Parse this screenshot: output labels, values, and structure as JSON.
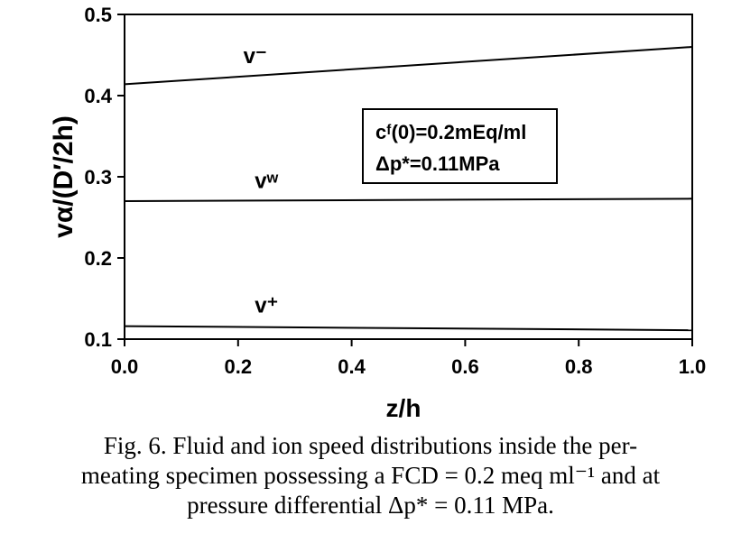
{
  "chart_data": {
    "type": "line",
    "xlabel": "z/h",
    "ylabel": "vα/(D′/2h)",
    "xlim": [
      0.0,
      1.0
    ],
    "ylim": [
      0.1,
      0.5
    ],
    "x_ticks": [
      "0.0",
      "0.2",
      "0.4",
      "0.6",
      "0.8",
      "1.0"
    ],
    "y_ticks": [
      "0.1",
      "0.2",
      "0.3",
      "0.4",
      "0.5"
    ],
    "grid": false,
    "series": [
      {
        "name": "v⁻",
        "x": [
          0.0,
          1.0
        ],
        "y": [
          0.414,
          0.46
        ]
      },
      {
        "name": "vʷ",
        "x": [
          0.0,
          1.0
        ],
        "y": [
          0.27,
          0.273
        ]
      },
      {
        "name": "v⁺",
        "x": [
          0.0,
          1.0
        ],
        "y": [
          0.116,
          0.111
        ]
      }
    ],
    "annotation": {
      "line1": "cᶠ(0)=0.2mEq/ml",
      "line2": "Δp*=0.11MPa"
    }
  },
  "caption": {
    "line1": "Fig. 6. Fluid and ion speed distributions inside the per-",
    "line2": "meating specimen possessing a FCD = 0.2 meq ml⁻¹ and at",
    "line3": "pressure differential Δp* = 0.11 MPa."
  }
}
